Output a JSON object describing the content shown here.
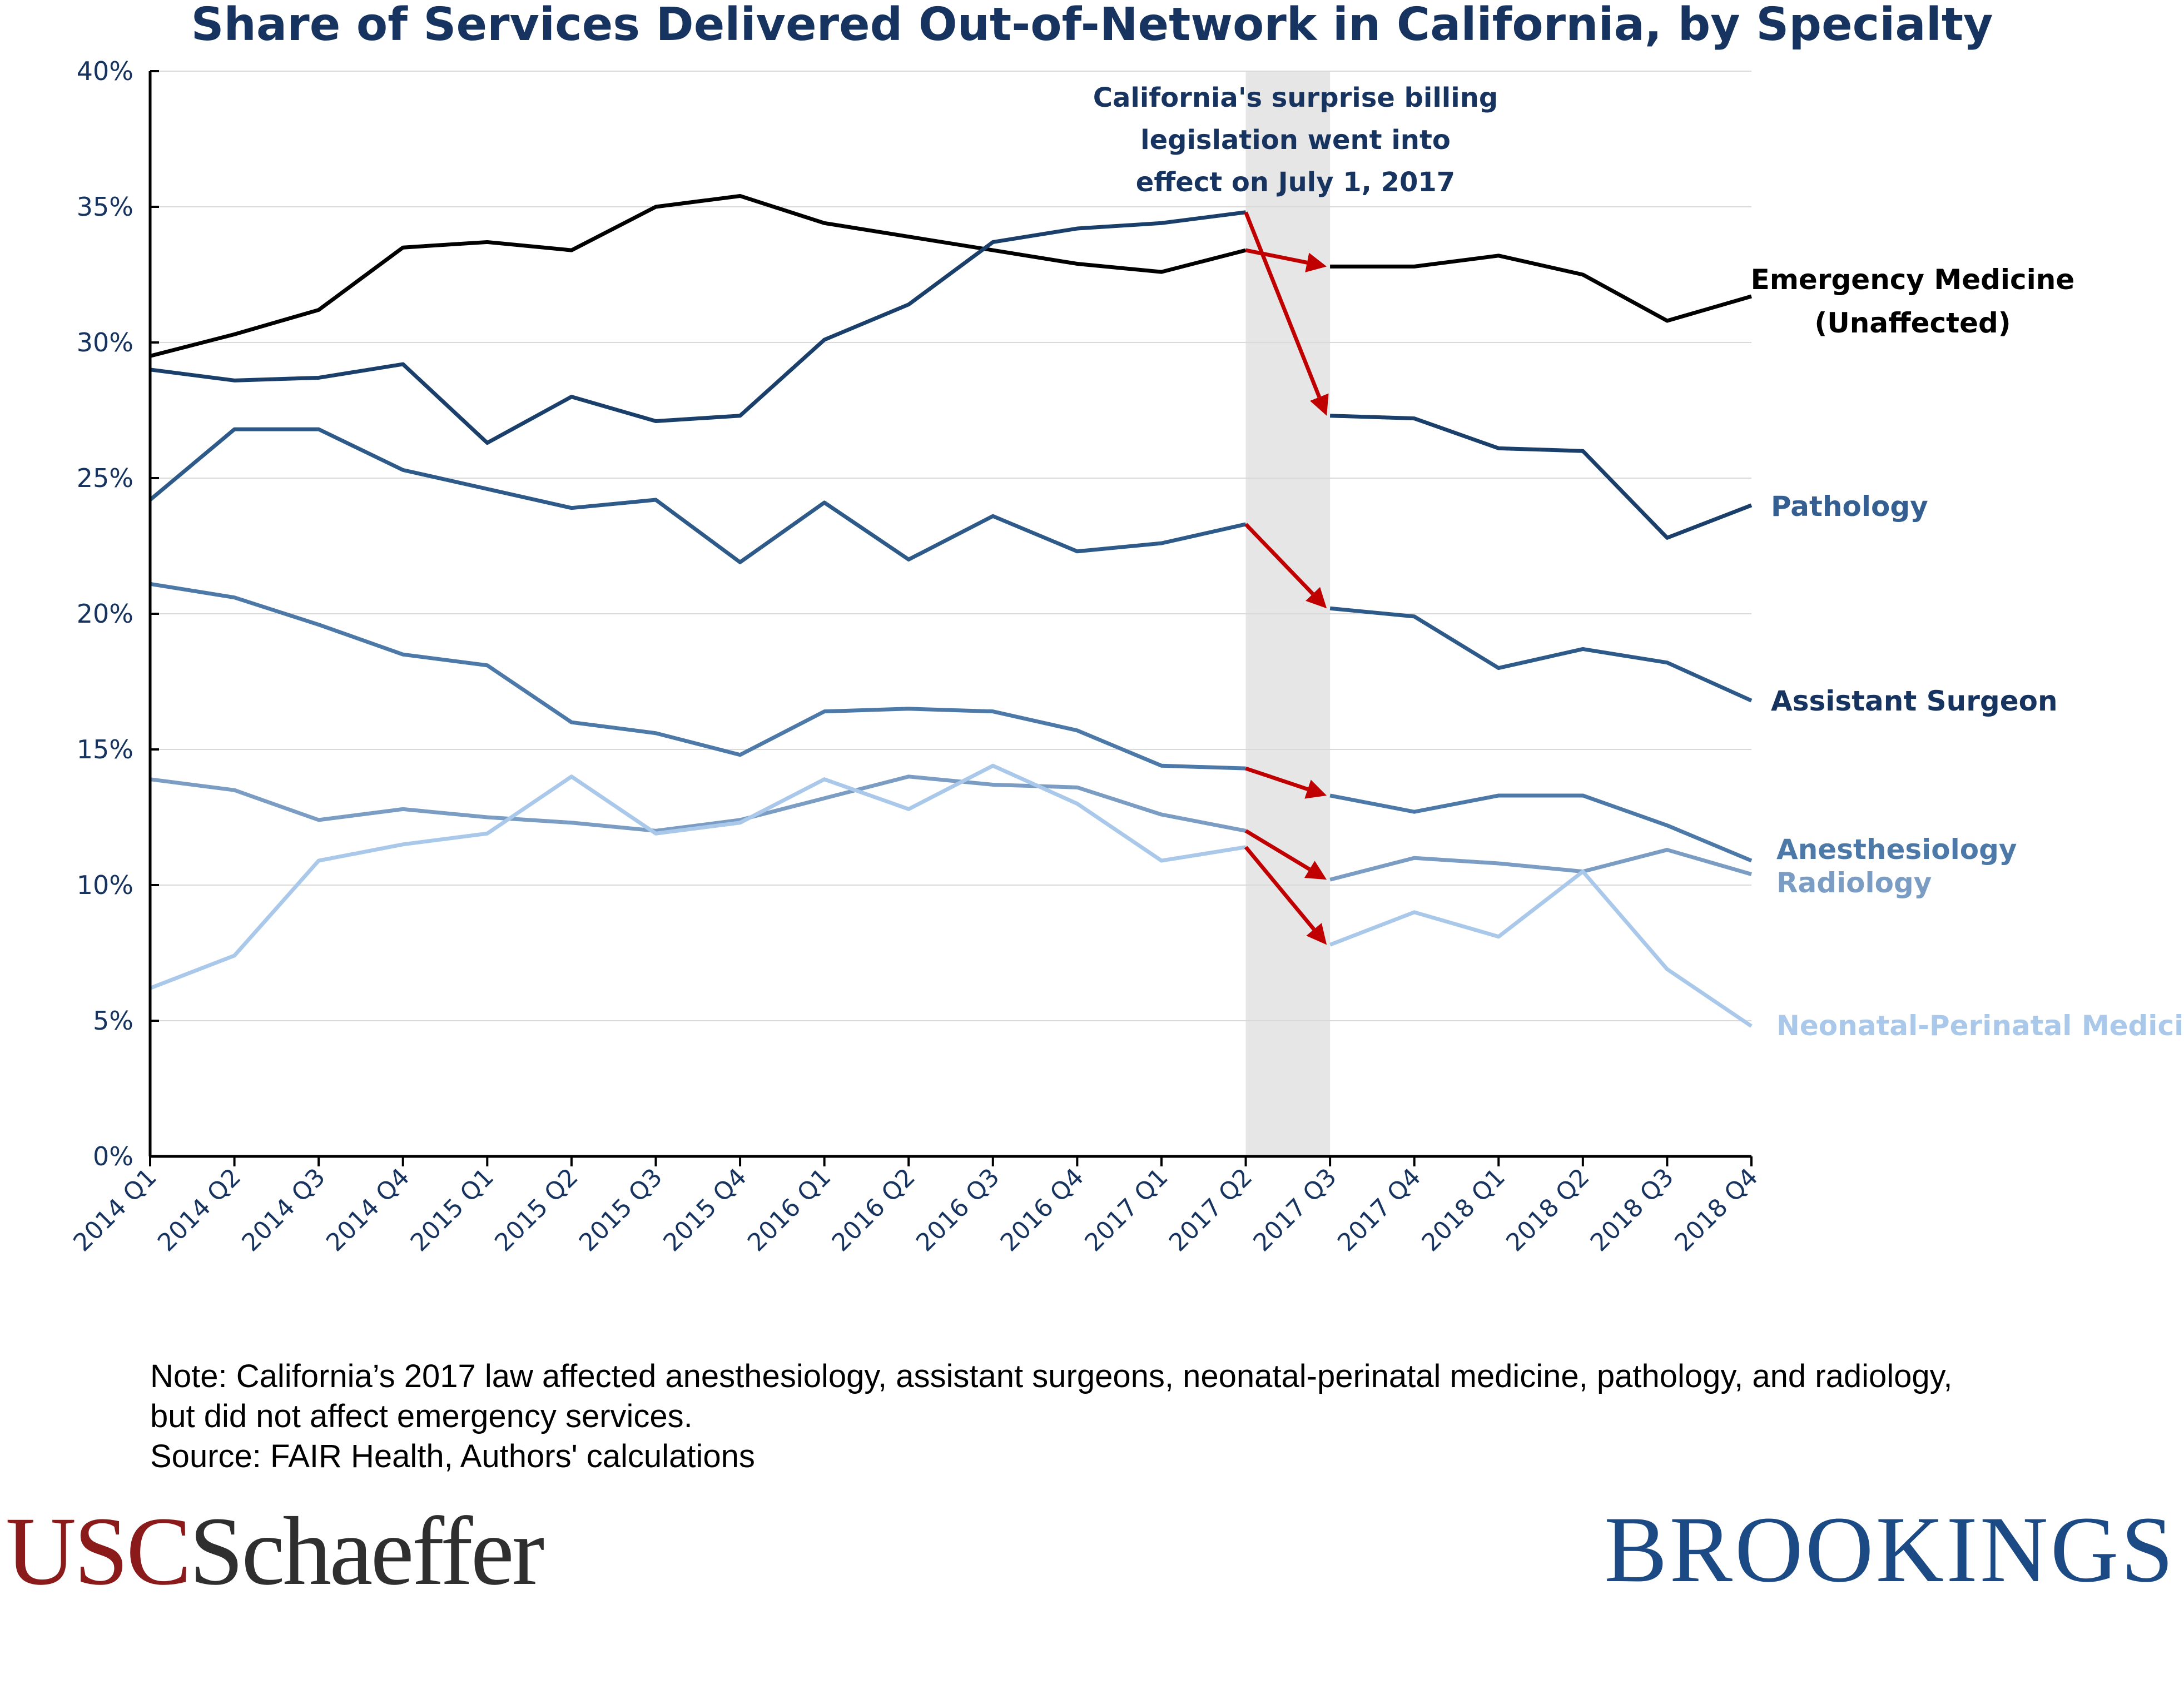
{
  "chart_data": {
    "type": "line",
    "title": "Share of Services Delivered Out-of-Network in California, by Specialty",
    "categories": [
      "2014 Q1",
      "2014 Q2",
      "2014 Q3",
      "2014 Q4",
      "2015 Q1",
      "2015 Q2",
      "2015 Q3",
      "2015 Q4",
      "2016 Q1",
      "2016 Q2",
      "2016 Q3",
      "2016 Q4",
      "2017 Q1",
      "2017 Q2",
      "2017 Q3",
      "2017 Q4",
      "2018 Q1",
      "2018 Q2",
      "2018 Q3",
      "2018 Q4"
    ],
    "ylim": [
      0,
      40
    ],
    "yticks": [
      "0%",
      "5%",
      "10%",
      "15%",
      "20%",
      "25%",
      "30%",
      "35%",
      "40%"
    ],
    "grid": true,
    "annotation": {
      "lines": [
        "California's surprise billing",
        "legislation went into",
        "effect on July 1, 2017"
      ],
      "shade_from": "2017 Q2",
      "shade_to": "2017 Q3",
      "arrow_color": "#c00000"
    },
    "series": [
      {
        "name": "Emergency Medicine",
        "name_line2": "(Unaffected)",
        "color": "#000000",
        "values": [
          29.5,
          30.3,
          31.2,
          33.5,
          33.7,
          33.4,
          35.0,
          35.4,
          34.4,
          33.9,
          33.4,
          32.9,
          32.6,
          33.4,
          32.8,
          32.8,
          33.2,
          32.5,
          30.8,
          31.7
        ]
      },
      {
        "name": "Pathology",
        "color": "#1a3f6b",
        "values": [
          29.0,
          28.6,
          28.7,
          29.2,
          26.3,
          28.0,
          27.1,
          27.3,
          30.1,
          31.4,
          33.7,
          34.2,
          34.4,
          34.8,
          27.3,
          27.2,
          26.1,
          26.0,
          22.8,
          24.0
        ]
      },
      {
        "name": "Assistant Surgeon",
        "color": "#2e5a8a",
        "values": [
          24.2,
          26.8,
          26.8,
          25.3,
          24.6,
          23.9,
          24.2,
          21.9,
          24.1,
          22.0,
          23.6,
          22.3,
          22.6,
          23.3,
          20.2,
          19.9,
          18.0,
          18.7,
          18.2,
          16.8
        ]
      },
      {
        "name": "Anesthesiology",
        "color": "#4d79a8",
        "values": [
          21.1,
          20.6,
          19.6,
          18.5,
          18.1,
          16.0,
          15.6,
          14.8,
          16.4,
          16.5,
          16.4,
          15.7,
          14.4,
          14.3,
          13.3,
          12.7,
          13.3,
          13.3,
          12.2,
          10.9
        ]
      },
      {
        "name": "Radiology",
        "color": "#7b9dc4",
        "values": [
          13.9,
          13.5,
          12.4,
          12.8,
          12.5,
          12.3,
          12.0,
          12.4,
          13.2,
          14.0,
          13.7,
          13.6,
          12.6,
          12.0,
          10.2,
          11.0,
          10.8,
          10.5,
          11.3,
          10.4
        ]
      },
      {
        "name": "Neonatal-Perinatal Medicine",
        "color": "#a9c8ea",
        "values": [
          6.2,
          7.4,
          10.9,
          11.5,
          11.9,
          14.0,
          11.9,
          12.3,
          13.9,
          12.8,
          14.4,
          13.0,
          10.9,
          11.4,
          7.8,
          9.0,
          8.1,
          10.5,
          6.9,
          4.8
        ]
      }
    ],
    "arrows": [
      {
        "series": "Emergency Medicine",
        "from": "2017 Q2",
        "to": "2017 Q3"
      },
      {
        "series": "Pathology",
        "from": "2017 Q2",
        "to": "2017 Q3"
      },
      {
        "series": "Assistant Surgeon",
        "from": "2017 Q2",
        "to": "2017 Q3"
      },
      {
        "series": "Anesthesiology",
        "from": "2017 Q2",
        "to": "2017 Q3"
      },
      {
        "series": "Radiology",
        "from": "2017 Q2",
        "to": "2017 Q3"
      },
      {
        "series": "Neonatal-Perinatal Medicine",
        "from": "2017 Q2",
        "to": "2017 Q3"
      }
    ]
  },
  "note": {
    "line1": "Note: California’s 2017 law affected anesthesiology, assistant surgeons, neonatal-perinatal medicine, pathology, and radiology,",
    "line2": "but did not affect emergency services.",
    "source": "Source: FAIR Health, Authors' calculations"
  },
  "logos": {
    "usc_part1": "USC",
    "usc_part2": "Schaeffer",
    "brookings": "BROOKINGS"
  }
}
